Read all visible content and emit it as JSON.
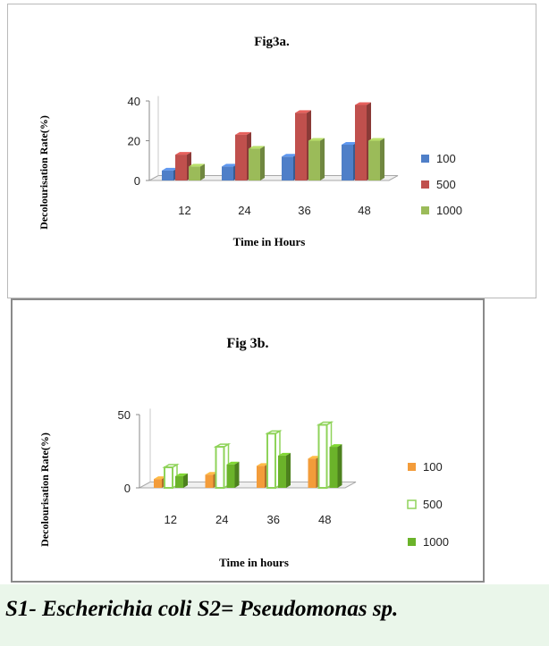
{
  "colors": {
    "blue": "#4f7fc8",
    "red": "#c0504d",
    "green": "#9bbb59",
    "orange": "#f39c3a",
    "green_hollow": "#8fd35a",
    "green_dark": "#6bb32a"
  },
  "chart_data": [
    {
      "type": "bar",
      "title": "Fig3a.",
      "xlabel": "Time in Hours",
      "ylabel": "Decolourisation Rate(%)",
      "categories": [
        "12",
        "24",
        "36",
        "48"
      ],
      "y_ticks": [
        "0",
        "20",
        "40"
      ],
      "ylim": [
        0,
        40
      ],
      "series": [
        {
          "name": "100",
          "values": [
            5,
            7,
            12,
            18
          ]
        },
        {
          "name": "500",
          "values": [
            13,
            23,
            34,
            38
          ]
        },
        {
          "name": "1000",
          "values": [
            7,
            16,
            20,
            20
          ]
        }
      ],
      "legend_position": "right",
      "grid": false
    },
    {
      "type": "bar",
      "title": "Fig 3b.",
      "xlabel": "Time in hours",
      "ylabel": "Decolourisation Rate(%)",
      "categories": [
        "12",
        "24",
        "36",
        "48"
      ],
      "y_ticks": [
        "0",
        "50"
      ],
      "ylim": [
        0,
        50
      ],
      "series": [
        {
          "name": "100",
          "values": [
            6,
            9,
            15,
            20
          ]
        },
        {
          "name": "500",
          "values": [
            14,
            28,
            37,
            43
          ]
        },
        {
          "name": "1000",
          "values": [
            8,
            16,
            22,
            28
          ]
        }
      ],
      "legend_position": "right",
      "grid": false
    }
  ],
  "caption": "S1- Escherichia coli  S2= Pseudomonas sp."
}
